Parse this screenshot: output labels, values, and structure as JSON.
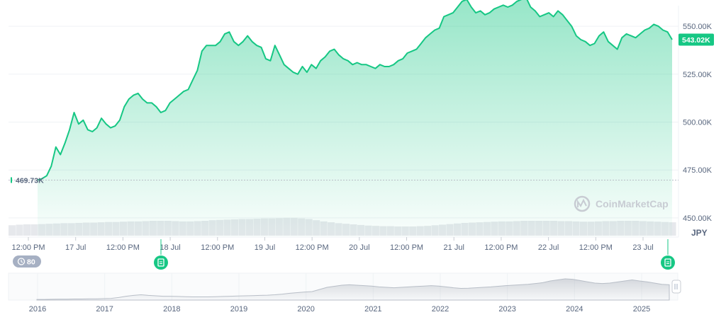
{
  "chart_data": {
    "type": "area",
    "currency": "JPY",
    "watermark": "CoinMarketCap",
    "y_ticks": [
      "550.00K",
      "525.00K",
      "500.00K",
      "475.00K",
      "450.00K"
    ],
    "y_tick_values": [
      550000,
      525000,
      500000,
      475000,
      450000
    ],
    "ylim": [
      440000,
      560000
    ],
    "current_price_label": "543.02K",
    "current_price": 543020,
    "start_price_label": "469.73K",
    "start_price": 469730,
    "x_ticks": [
      "12:00 PM",
      "17 Jul",
      "12:00 PM",
      "18 Jul",
      "12:00 PM",
      "19 Jul",
      "12:00 PM",
      "20 Jul",
      "12:00 PM",
      "21 Jul",
      "12:00 PM",
      "22 Jul",
      "12:00 PM",
      "23 Jul"
    ],
    "series": [
      {
        "values": [
          469730,
          470500,
          472000,
          477000,
          487000,
          483000,
          489000,
          496000,
          505000,
          499000,
          501000,
          496000,
          495000,
          497000,
          502000,
          499000,
          497000,
          498000,
          501000,
          508000,
          512000,
          514000,
          515000,
          512000,
          510000,
          510000,
          508000,
          505000,
          506000,
          510000,
          512000,
          514000,
          516000,
          517000,
          522000,
          527000,
          537000,
          540000,
          540000,
          540000,
          542000,
          546000,
          547000,
          542000,
          540000,
          542000,
          545000,
          542000,
          540000,
          539000,
          533000,
          532000,
          540000,
          535000,
          530000,
          528000,
          526000,
          525000,
          529000,
          526000,
          530000,
          528000,
          532000,
          534000,
          537000,
          538000,
          535000,
          533000,
          532000,
          530000,
          531000,
          530000,
          530000,
          529000,
          528000,
          530000,
          529000,
          529000,
          530000,
          532000,
          533000,
          536000,
          537000,
          538000,
          541000,
          544000,
          546000,
          548000,
          549000,
          555000,
          556000,
          557000,
          560000,
          563000,
          564000,
          560000,
          557000,
          558000,
          556000,
          557000,
          559000,
          560000,
          561000,
          560000,
          561000,
          563000,
          564000,
          565000,
          560000,
          558000,
          555000,
          556000,
          557000,
          555000,
          558000,
          556000,
          553000,
          550000,
          545000,
          543000,
          542000,
          540000,
          541000,
          545000,
          547000,
          542000,
          540000,
          538000,
          544000,
          546000,
          545000,
          544000,
          546000,
          548000,
          549000,
          551000,
          550000,
          548000,
          547000,
          543020
        ]
      }
    ],
    "volume": [
      0.35,
      0.37,
      0.38,
      0.38,
      0.39,
      0.4,
      0.41,
      0.42,
      0.42,
      0.43,
      0.44,
      0.44,
      0.45,
      0.46,
      0.46,
      0.47,
      0.48,
      0.48,
      0.49,
      0.5,
      0.5,
      0.5,
      0.49,
      0.48,
      0.48,
      0.49,
      0.5,
      0.52,
      0.53,
      0.54,
      0.55,
      0.56,
      0.56,
      0.57,
      0.58,
      0.58,
      0.59,
      0.6,
      0.6,
      0.58,
      0.56,
      0.52,
      0.48,
      0.45,
      0.42,
      0.4,
      0.38,
      0.36,
      0.34,
      0.33,
      0.32,
      0.32,
      0.31,
      0.31,
      0.31,
      0.32,
      0.33,
      0.35,
      0.37,
      0.39,
      0.41,
      0.43,
      0.44,
      0.45,
      0.46,
      0.47,
      0.48,
      0.48,
      0.49,
      0.5,
      0.5,
      0.5,
      0.5,
      0.5,
      0.49,
      0.49,
      0.48,
      0.47,
      0.47,
      0.48,
      0.49,
      0.49,
      0.5,
      0.5,
      0.5,
      0.49,
      0.48,
      0.47,
      0.46,
      0.45
    ],
    "events_count": "80",
    "navigator": {
      "years": [
        "2016",
        "2017",
        "2018",
        "2019",
        "2020",
        "2021",
        "2022",
        "2023",
        "2024",
        "2025"
      ],
      "values": [
        0.03,
        0.03,
        0.035,
        0.04,
        0.04,
        0.05,
        0.05,
        0.06,
        0.06,
        0.07,
        0.08,
        0.12,
        0.18,
        0.22,
        0.25,
        0.22,
        0.2,
        0.18,
        0.18,
        0.17,
        0.16,
        0.15,
        0.15,
        0.15,
        0.16,
        0.17,
        0.18,
        0.19,
        0.2,
        0.21,
        0.22,
        0.23,
        0.25,
        0.28,
        0.32,
        0.35,
        0.38,
        0.4,
        0.5,
        0.6,
        0.65,
        0.7,
        0.72,
        0.7,
        0.68,
        0.66,
        0.62,
        0.6,
        0.58,
        0.6,
        0.62,
        0.64,
        0.66,
        0.68,
        0.66,
        0.62,
        0.58,
        0.55,
        0.56,
        0.58,
        0.6,
        0.62,
        0.65,
        0.68,
        0.7,
        0.72,
        0.74,
        0.78,
        0.82,
        0.9,
        0.95,
        1.0,
        0.98,
        0.92,
        0.86,
        0.8,
        0.78,
        0.8,
        0.85,
        0.9,
        0.95,
        0.9,
        0.86,
        0.8,
        0.74,
        0.72
      ]
    }
  }
}
